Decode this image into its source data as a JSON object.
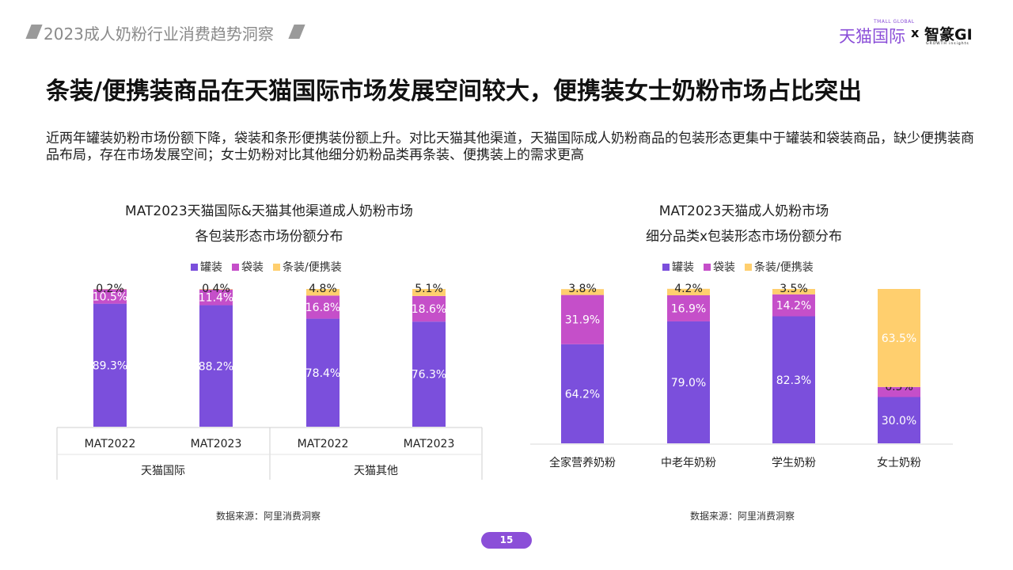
{
  "header": {
    "report_title": "2023成人奶粉行业消费趋势洞察",
    "logo": {
      "tmall_small": "TMALL GLOBAL",
      "tmall": "天猫国际",
      "x": "x",
      "gi": "智篆GI",
      "gi_sub": "GROWTH insights"
    }
  },
  "headline": "条装/便携装商品在天猫国际市场发展空间较大，便携装女士奶粉市场占比突出",
  "intro": "近两年罐装奶粉市场份额下降，袋装和条形便携装份额上升。对比天猫其他渠道，天猫国际成人奶粉商品的包装形态更集中于罐装和袋装商品，缺少便携装商品布局，存在市场发展空间；女士奶粉对比其他细分奶粉品类再条装、便携装上的需求更高",
  "colors": {
    "can": "#7b4fdc",
    "bag": "#c54fc9",
    "stick": "#ffcf6e",
    "accent": "#8b4fd8"
  },
  "chart_data": [
    {
      "type": "bar",
      "stacked": true,
      "title_line1": "MAT2023天猫国际&天猫其他渠道成人奶粉市场",
      "title_line2": "各包装形态市场份额分布",
      "legend": [
        "罐装",
        "袋装",
        "条装/便携装"
      ],
      "categories": [
        "MAT2022",
        "MAT2023",
        "MAT2022",
        "MAT2023"
      ],
      "groups": [
        "天猫国际",
        "天猫其他"
      ],
      "series": [
        {
          "name": "罐装",
          "values": [
            89.3,
            88.2,
            78.4,
            76.3
          ]
        },
        {
          "name": "袋装",
          "values": [
            10.5,
            11.4,
            16.8,
            18.6
          ]
        },
        {
          "name": "条装/便携装",
          "values": [
            0.2,
            0.4,
            4.8,
            5.1
          ]
        }
      ],
      "ylim": [
        0,
        100
      ],
      "source": "数据来源：阿里消费洞察"
    },
    {
      "type": "bar",
      "stacked": true,
      "title_line1": "MAT2023天猫成人奶粉市场",
      "title_line2": "细分品类x包装形态市场份额分布",
      "legend": [
        "罐装",
        "袋装",
        "条装/便携装"
      ],
      "categories": [
        "全家营养奶粉",
        "中老年奶粉",
        "学生奶粉",
        "女士奶粉"
      ],
      "series": [
        {
          "name": "罐装",
          "values": [
            64.2,
            79.0,
            82.3,
            30.0
          ]
        },
        {
          "name": "袋装",
          "values": [
            31.9,
            16.9,
            14.2,
            6.5
          ]
        },
        {
          "name": "条装/便携装",
          "values": [
            3.8,
            4.2,
            3.5,
            63.5
          ]
        }
      ],
      "ylim": [
        0,
        100
      ],
      "source": "数据来源：阿里消费洞察"
    }
  ],
  "page_number": "15"
}
